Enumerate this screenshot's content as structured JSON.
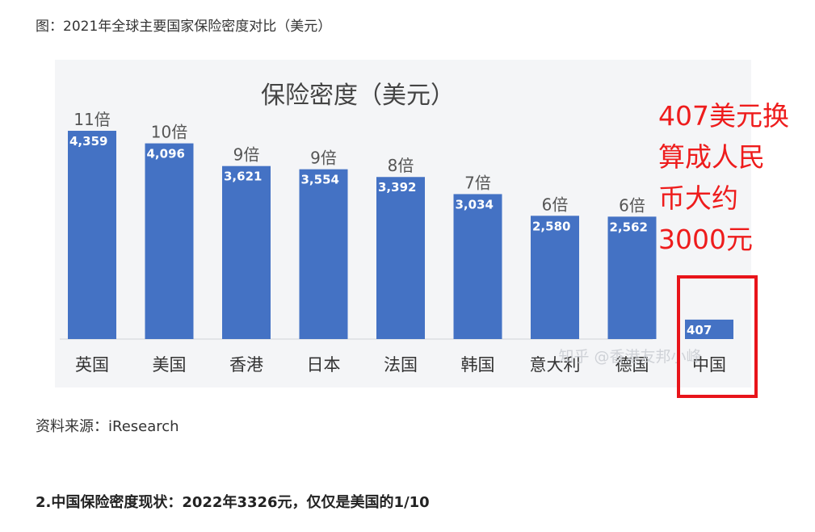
{
  "caption": "图：2021年全球主要国家保险密度对比（美元）",
  "annotation": [
    "407美元换",
    "算成人民",
    "币大约",
    "3000元"
  ],
  "source": "资料来源：iResearch",
  "headline": "2.中国保险密度现状：2022年3326元，仅仅是美国的1/10",
  "watermark": "知乎 @香港友邦小峰",
  "colors": {
    "bar": "#4472c4",
    "annotation": "#ee1c1c",
    "box": "#e8141a"
  },
  "chart_data": {
    "type": "bar",
    "title": "保险密度（美元）",
    "categories": [
      "英国",
      "美国",
      "香港",
      "日本",
      "法国",
      "韩国",
      "意大利",
      "德国",
      "中国"
    ],
    "values": [
      4359,
      4096,
      3621,
      3554,
      3392,
      3034,
      2580,
      2562,
      407
    ],
    "value_labels": [
      "4,359",
      "4,096",
      "3,621",
      "3,554",
      "3,392",
      "3,034",
      "2,580",
      "2,562",
      "407"
    ],
    "multiple_labels": [
      "11倍",
      "10倍",
      "9倍",
      "9倍",
      "8倍",
      "7倍",
      "6倍",
      "6倍",
      ""
    ],
    "ylim": [
      0,
      4900
    ],
    "grid": false,
    "legend": "none"
  }
}
